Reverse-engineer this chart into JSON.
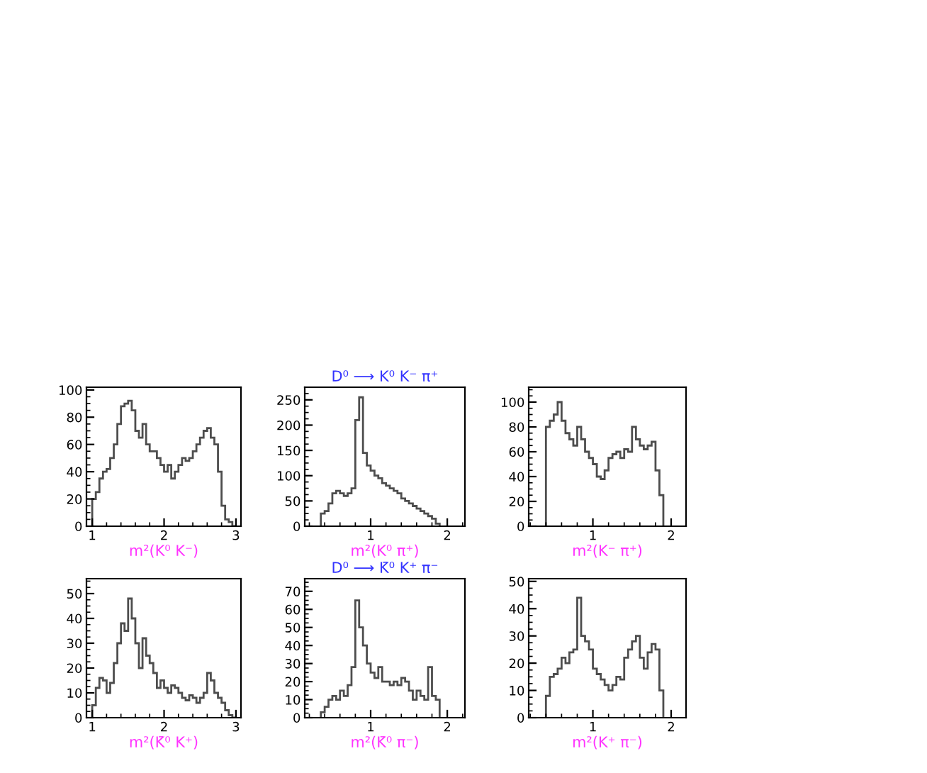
{
  "chart_data": [
    {
      "type": "histogram",
      "xlabel": "m²(K⁰ K⁻)",
      "color": "#4d4d4d",
      "xlim": [
        0.92,
        3.07
      ],
      "xticks": [
        1,
        2,
        3
      ],
      "ylim": [
        0,
        102
      ],
      "yticks": [
        0,
        20,
        40,
        60,
        80,
        100
      ],
      "bins": [
        1.0,
        1.05,
        1.1,
        1.15,
        1.2,
        1.25,
        1.3,
        1.35,
        1.4,
        1.45,
        1.5,
        1.55,
        1.6,
        1.65,
        1.7,
        1.75,
        1.8,
        1.85,
        1.9,
        1.95,
        2.0,
        2.05,
        2.1,
        2.15,
        2.2,
        2.25,
        2.3,
        2.35,
        2.4,
        2.45,
        2.5,
        2.55,
        2.6,
        2.65,
        2.7,
        2.75,
        2.8,
        2.85,
        2.9,
        2.95,
        3.0
      ],
      "values": [
        20,
        25,
        35,
        40,
        42,
        50,
        60,
        75,
        88,
        90,
        92,
        85,
        70,
        65,
        75,
        60,
        55,
        55,
        50,
        45,
        40,
        45,
        35,
        40,
        45,
        50,
        48,
        50,
        55,
        60,
        65,
        70,
        72,
        65,
        60,
        40,
        15,
        5,
        3,
        0
      ]
    },
    {
      "type": "histogram",
      "title": "D⁰ ⟶ K⁰ K⁻ π⁺",
      "xlabel": "m²(K⁰ π⁺)",
      "color": "#4d4d4d",
      "xlim": [
        0.14,
        2.23
      ],
      "xticks": [
        1,
        2
      ],
      "ylim": [
        0,
        275
      ],
      "yticks": [
        0,
        50,
        100,
        150,
        200,
        250
      ],
      "bins": [
        0.35,
        0.4,
        0.45,
        0.5,
        0.55,
        0.6,
        0.65,
        0.7,
        0.75,
        0.8,
        0.85,
        0.9,
        0.95,
        1.0,
        1.05,
        1.1,
        1.15,
        1.2,
        1.25,
        1.3,
        1.35,
        1.4,
        1.45,
        1.5,
        1.55,
        1.6,
        1.65,
        1.7,
        1.75,
        1.8,
        1.85,
        1.9
      ],
      "values": [
        25,
        30,
        45,
        65,
        70,
        65,
        60,
        65,
        75,
        210,
        255,
        145,
        120,
        110,
        100,
        95,
        85,
        80,
        75,
        70,
        65,
        55,
        50,
        45,
        40,
        35,
        30,
        25,
        20,
        15,
        5
      ]
    },
    {
      "type": "histogram",
      "xlabel": "m²(K⁻ π⁺)",
      "color": "#4d4d4d",
      "xlim": [
        0.18,
        2.19
      ],
      "xticks": [
        1,
        2
      ],
      "ylim": [
        0,
        112
      ],
      "yticks": [
        0,
        20,
        40,
        60,
        80,
        100
      ],
      "bins": [
        0.4,
        0.45,
        0.5,
        0.55,
        0.6,
        0.65,
        0.7,
        0.75,
        0.8,
        0.85,
        0.9,
        0.95,
        1.0,
        1.05,
        1.1,
        1.15,
        1.2,
        1.25,
        1.3,
        1.35,
        1.4,
        1.45,
        1.5,
        1.55,
        1.6,
        1.65,
        1.7,
        1.75,
        1.8,
        1.85,
        1.9
      ],
      "values": [
        80,
        85,
        90,
        100,
        85,
        75,
        70,
        65,
        80,
        70,
        60,
        55,
        50,
        40,
        38,
        45,
        55,
        58,
        60,
        55,
        62,
        60,
        80,
        70,
        65,
        62,
        65,
        68,
        45,
        25
      ]
    },
    {
      "type": "histogram",
      "xlabel": "m²(K̄⁰ K⁺)",
      "color": "#4d4d4d",
      "xlim": [
        0.92,
        3.07
      ],
      "xticks": [
        1,
        2,
        3
      ],
      "ylim": [
        0,
        56
      ],
      "yticks": [
        0,
        10,
        20,
        30,
        40,
        50
      ],
      "bins": [
        1.0,
        1.05,
        1.1,
        1.15,
        1.2,
        1.25,
        1.3,
        1.35,
        1.4,
        1.45,
        1.5,
        1.55,
        1.6,
        1.65,
        1.7,
        1.75,
        1.8,
        1.85,
        1.9,
        1.95,
        2.0,
        2.05,
        2.1,
        2.15,
        2.2,
        2.25,
        2.3,
        2.35,
        2.4,
        2.45,
        2.5,
        2.55,
        2.6,
        2.65,
        2.7,
        2.75,
        2.8,
        2.85,
        2.9,
        2.95,
        3.0
      ],
      "values": [
        5,
        12,
        16,
        15,
        10,
        14,
        22,
        30,
        38,
        35,
        48,
        40,
        30,
        20,
        32,
        25,
        22,
        18,
        12,
        15,
        12,
        10,
        13,
        12,
        10,
        8,
        7,
        9,
        8,
        6,
        8,
        10,
        18,
        15,
        10,
        8,
        6,
        3,
        1,
        0
      ]
    },
    {
      "type": "histogram",
      "title": "D⁰ ⟶ K̄⁰ K⁺ π⁻",
      "xlabel": "m²(K̄⁰ π⁻)",
      "color": "#4d4d4d",
      "xlim": [
        0.14,
        2.23
      ],
      "xticks": [
        1,
        2
      ],
      "ylim": [
        0,
        77
      ],
      "yticks": [
        0,
        10,
        20,
        30,
        40,
        50,
        60,
        70
      ],
      "bins": [
        0.35,
        0.4,
        0.45,
        0.5,
        0.55,
        0.6,
        0.65,
        0.7,
        0.75,
        0.8,
        0.85,
        0.9,
        0.95,
        1.0,
        1.05,
        1.1,
        1.15,
        1.2,
        1.25,
        1.3,
        1.35,
        1.4,
        1.45,
        1.5,
        1.55,
        1.6,
        1.65,
        1.7,
        1.75,
        1.8,
        1.85,
        1.9
      ],
      "values": [
        3,
        6,
        10,
        12,
        10,
        15,
        12,
        18,
        28,
        65,
        50,
        40,
        30,
        25,
        22,
        28,
        20,
        20,
        18,
        20,
        18,
        22,
        20,
        15,
        10,
        15,
        12,
        10,
        28,
        12,
        10
      ]
    },
    {
      "type": "histogram",
      "xlabel": "m²(K⁺ π⁻)",
      "color": "#4d4d4d",
      "xlim": [
        0.18,
        2.19
      ],
      "xticks": [
        1,
        2
      ],
      "ylim": [
        0,
        51
      ],
      "yticks": [
        0,
        10,
        20,
        30,
        40,
        50
      ],
      "bins": [
        0.4,
        0.45,
        0.5,
        0.55,
        0.6,
        0.65,
        0.7,
        0.75,
        0.8,
        0.85,
        0.9,
        0.95,
        1.0,
        1.05,
        1.1,
        1.15,
        1.2,
        1.25,
        1.3,
        1.35,
        1.4,
        1.45,
        1.5,
        1.55,
        1.6,
        1.65,
        1.7,
        1.75,
        1.8,
        1.85,
        1.9
      ],
      "values": [
        8,
        15,
        16,
        18,
        22,
        20,
        24,
        25,
        44,
        30,
        28,
        25,
        18,
        16,
        14,
        12,
        10,
        12,
        15,
        14,
        22,
        25,
        28,
        30,
        22,
        18,
        24,
        27,
        25,
        10
      ]
    }
  ]
}
